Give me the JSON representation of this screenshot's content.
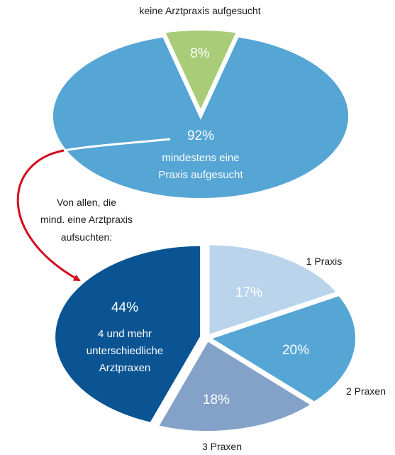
{
  "colors": {
    "mid_blue": "#55a5d5",
    "green": "#a8cc78",
    "light_blue": "#b9d4eb",
    "dark_blue": "#0a5493",
    "grey_blue": "#84a1c8",
    "arrow": "#d40c1e",
    "label_text": "#1a1a1a",
    "inner_text": "#ffffff"
  },
  "chart_data": [
    {
      "type": "pie",
      "slices": [
        {
          "name": "keine Arztpraxis aufgesucht",
          "value": 8,
          "label": "8%",
          "color": "#a8cc78"
        },
        {
          "name": "mindestens eine Praxis aufgesucht",
          "value": 92,
          "label": "92%",
          "color": "#55a5d5"
        }
      ],
      "outer_label": "keine Arztpraxis aufgesucht",
      "inner_label_lines": [
        "mindestens eine",
        "Praxis aufgesucht"
      ]
    },
    {
      "type": "pie",
      "slices": [
        {
          "name": "1 Praxis",
          "value": 17,
          "label": "17%",
          "color": "#b9d4eb"
        },
        {
          "name": "2 Praxen",
          "value": 20,
          "label": "20%",
          "color": "#55a5d5"
        },
        {
          "name": "3 Praxen",
          "value": 18,
          "label": "18%",
          "color": "#84a1c8"
        },
        {
          "name": "4 und mehr unterschiedliche Arztpraxen",
          "value": 44,
          "label": "44%",
          "color": "#0a5493"
        }
      ],
      "outer_labels": [
        "1 Praxis",
        "2 Praxen",
        "3 Praxen"
      ],
      "inner_label_lines": [
        "4 und mehr",
        "unterschiedliche",
        "Arztpraxen"
      ]
    }
  ],
  "annotation": {
    "lines": [
      "Von allen, die",
      "mind. eine Arztpraxis",
      "aufsuchten:"
    ]
  }
}
